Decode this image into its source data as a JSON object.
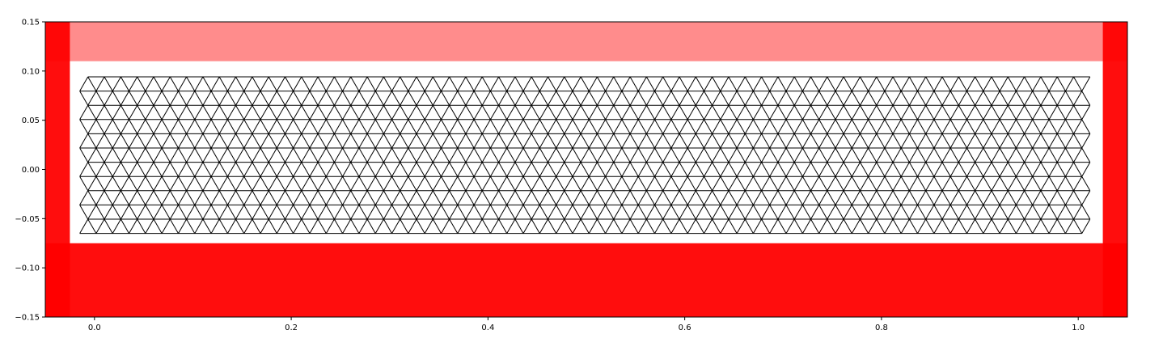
{
  "chart_data": {
    "type": "scatter",
    "title": "",
    "xlabel": "",
    "ylabel": "",
    "xlim": [
      -0.05,
      1.05
    ],
    "ylim": [
      -0.15,
      0.15
    ],
    "grid": false,
    "x_ticks": [
      0.0,
      0.2,
      0.4,
      0.6,
      0.8,
      1.0
    ],
    "x_tick_labels": [
      "0.0",
      "0.2",
      "0.4",
      "0.6",
      "0.8",
      "1.0"
    ],
    "y_ticks": [
      0.15,
      0.1,
      0.05,
      0.0,
      -0.05,
      -0.1,
      -0.15
    ],
    "y_tick_labels": [
      "0.15",
      "0.10",
      "0.05",
      "0.00",
      "−0.05",
      "−0.10",
      "−0.15"
    ],
    "colors": {
      "boundary_particles": "#ff0000",
      "mesh_edges": "#000000",
      "background": "#ffffff"
    },
    "boundary_bands": [
      {
        "region": "bottom",
        "x": [
          -0.05,
          1.05
        ],
        "y": [
          -0.15,
          -0.075
        ],
        "opacity": 0.95
      },
      {
        "region": "top",
        "x": [
          -0.05,
          1.05
        ],
        "y": [
          0.11,
          0.15
        ],
        "opacity": 0.45
      },
      {
        "region": "left",
        "x": [
          -0.05,
          -0.025
        ],
        "y": [
          -0.15,
          0.15
        ],
        "opacity": 0.95
      },
      {
        "region": "right",
        "x": [
          1.025,
          1.05
        ],
        "y": [
          -0.15,
          0.15
        ],
        "opacity": 0.95
      }
    ],
    "mesh": {
      "type": "triangular-lattice",
      "x_range": [
        -0.015,
        1.02
      ],
      "y_range": [
        -0.065,
        0.107
      ],
      "spacing": 0.0167
    }
  }
}
